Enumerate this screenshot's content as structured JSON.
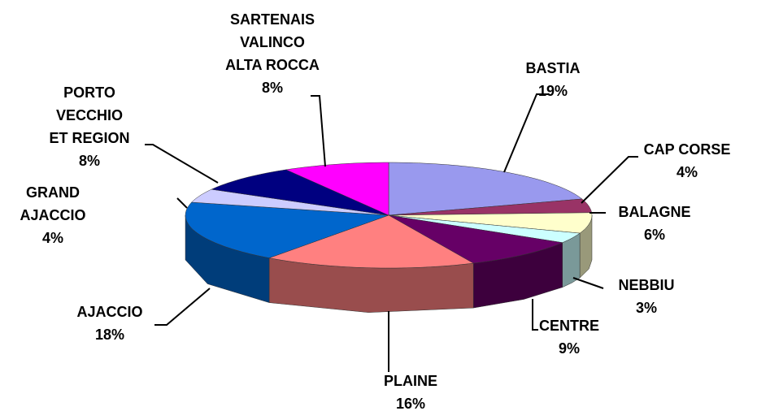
{
  "chart_data": {
    "type": "pie3d",
    "categories": [
      "BASTIA",
      "CAP CORSE",
      "BALAGNE",
      "NEBBIU",
      "CENTRE",
      "PLAINE",
      "AJACCIO",
      "GRAND\nAJACCIO",
      "PORTO\nVECCHIO\nET REGION",
      "SARTENAIS\nVALINCO\nALTA ROCCA"
    ],
    "values": [
      19,
      4,
      6,
      3,
      9,
      16,
      18,
      4,
      8,
      8
    ],
    "value_labels": [
      "19%",
      "4%",
      "6%",
      "3%",
      "9%",
      "16%",
      "18%",
      "4%",
      "8%",
      "8%"
    ],
    "colors": [
      "#9999ee",
      "#993366",
      "#ffffcc",
      "#ccffff",
      "#660066",
      "#ff8080",
      "#0066cc",
      "#ccccff",
      "#000080",
      "#ff00ff"
    ]
  }
}
